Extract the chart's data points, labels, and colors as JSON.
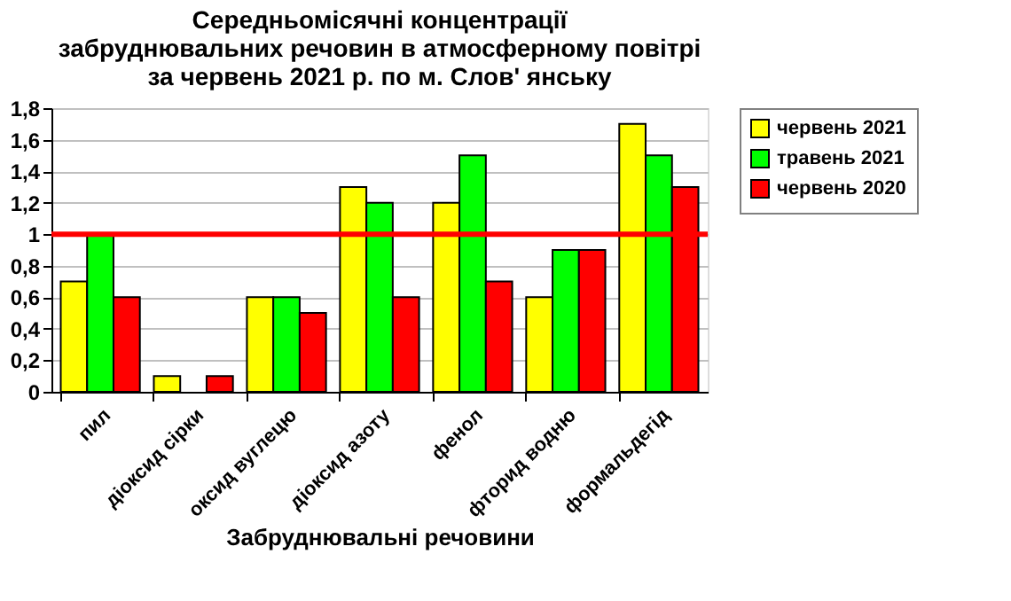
{
  "chart_data": {
    "type": "bar",
    "title": [
      "Середньомісячні концентрації",
      "забруднювальних речовин в атмосферному повітрі",
      "за червень 2021 р. по м. Слов' янську"
    ],
    "xlabel": "Забруднювальні речовини",
    "categories": [
      "пил",
      "діоксид сірки",
      "оксид вуглецю",
      "діоксид азоту",
      "фенол",
      "фторид водню",
      "формальдегід"
    ],
    "series": [
      {
        "name": "червень 2021",
        "color": "#ffff00",
        "values": [
          0.7,
          0.1,
          0.6,
          1.3,
          1.2,
          0.6,
          1.7
        ]
      },
      {
        "name": "травень 2021",
        "color": "#00ff00",
        "values": [
          1.0,
          null,
          0.6,
          1.2,
          1.5,
          0.9,
          1.5
        ]
      },
      {
        "name": "червень 2020",
        "color": "#ff0000",
        "values": [
          0.6,
          0.1,
          0.5,
          0.6,
          0.7,
          0.9,
          1.3
        ]
      }
    ],
    "ylim": [
      0,
      1.8
    ],
    "yticks": [
      0,
      {
        "value": 0.2,
        "label": "0,2"
      },
      {
        "value": 0.4,
        "label": "0,4"
      },
      {
        "value": 0.6,
        "label": "0,6"
      },
      {
        "value": 0.8,
        "label": "0,8"
      },
      1,
      {
        "value": 1.2,
        "label": "1,2"
      },
      {
        "value": 1.4,
        "label": "1,4"
      },
      {
        "value": 1.6,
        "label": "1,6"
      },
      {
        "value": 1.8,
        "label": "1,8"
      }
    ],
    "ref_lines": [
      {
        "axis": "y",
        "value": 1,
        "color": "#ff0000"
      }
    ],
    "grid": "y",
    "legend": "right"
  }
}
